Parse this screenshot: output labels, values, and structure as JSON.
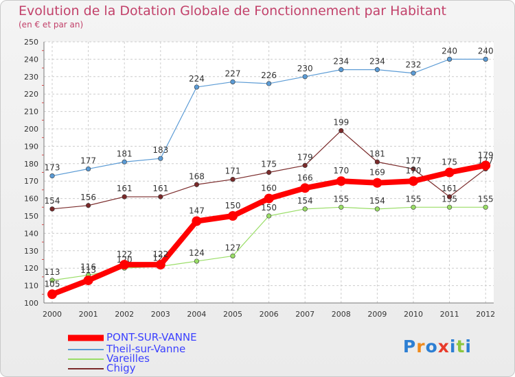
{
  "chart_data": {
    "type": "line",
    "title": "Evolution de la Dotation Globale de Fonctionnement par Habitant",
    "subtitle": "(en € et par an)",
    "xlabel": "",
    "ylabel": "",
    "ylim": [
      100,
      250
    ],
    "yticks": [
      100,
      110,
      120,
      130,
      140,
      150,
      160,
      170,
      180,
      190,
      200,
      210,
      220,
      230,
      240,
      250
    ],
    "x": [
      "2000",
      "2001",
      "2002",
      "2003",
      "2004",
      "2005",
      "2006",
      "2007",
      "2008",
      "2009",
      "2010",
      "2011",
      "2012"
    ],
    "grid": true,
    "legend_position": "bottom-left",
    "series": [
      {
        "name": "PONT-SUR-VANNE",
        "color": "#ff0000",
        "values": [
          105,
          113,
          122,
          122,
          147,
          150,
          160,
          166,
          170,
          169,
          170,
          175,
          179
        ]
      },
      {
        "name": "Theil-sur-Vanne",
        "color": "#5b9bd5",
        "values": [
          173,
          177,
          181,
          183,
          224,
          227,
          226,
          230,
          234,
          234,
          232,
          240,
          240
        ]
      },
      {
        "name": "Vareilles",
        "color": "#99dd66",
        "values": [
          113,
          116,
          120,
          121,
          124,
          127,
          150,
          154,
          155,
          154,
          155,
          155,
          155
        ]
      },
      {
        "name": "Chigy",
        "color": "#7a2a2a",
        "values": [
          154,
          156,
          161,
          161,
          168,
          171,
          175,
          179,
          199,
          181,
          177,
          161,
          177
        ]
      }
    ]
  },
  "branding": {
    "logo_letters": [
      "P",
      "r",
      "o",
      "x",
      "i",
      "t",
      "i"
    ],
    "logo_colors": [
      "#2d7fd3",
      "#f08a1c",
      "#2d7fd3",
      "#e83b2b",
      "#2d7fd3",
      "#8cc63f",
      "#2d7fd3"
    ]
  }
}
